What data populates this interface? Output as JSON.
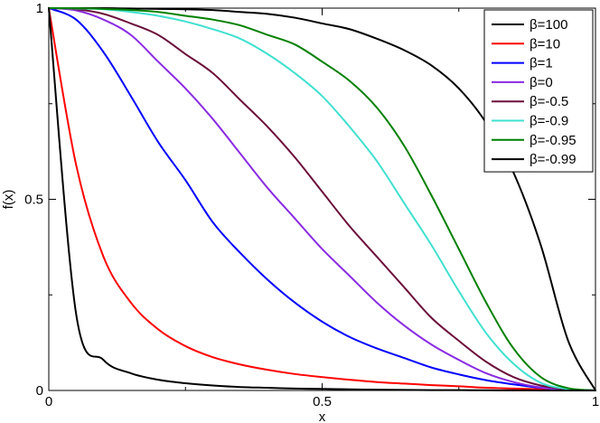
{
  "chart_data": {
    "type": "line",
    "title": "",
    "xlabel": "x",
    "ylabel": "f(x)",
    "xlim": [
      0,
      1
    ],
    "ylim": [
      0,
      1
    ],
    "x_ticks": [
      0,
      0.5,
      1
    ],
    "x_tick_labels": [
      "0",
      "0.5",
      "1"
    ],
    "y_ticks": [
      0,
      0.5,
      1
    ],
    "y_tick_labels": [
      "0",
      "0.5",
      "1"
    ],
    "grid": false,
    "legend_position": "top-right",
    "x": [
      0,
      0.05,
      0.1,
      0.15,
      0.2,
      0.25,
      0.3,
      0.35,
      0.4,
      0.45,
      0.5,
      0.55,
      0.6,
      0.65,
      0.7,
      0.75,
      0.8,
      0.85,
      0.9,
      0.95,
      1
    ],
    "series": [
      {
        "name": "β=100",
        "color": "#000000",
        "values": [
          1,
          1,
          1,
          0.999,
          0.998,
          0.997,
          0.995,
          0.99,
          0.985,
          0.975,
          0.96,
          0.945,
          0.92,
          0.89,
          0.85,
          0.79,
          0.7,
          0.57,
          0.38,
          0.13,
          0
        ]
      },
      {
        "name": "β=10",
        "color": "#ff0000",
        "values": [
          1,
          0.59,
          0.35,
          0.23,
          0.16,
          0.116,
          0.087,
          0.068,
          0.054,
          0.043,
          0.035,
          0.028,
          0.022,
          0.018,
          0.014,
          0.011,
          0.007,
          0.005,
          0.003,
          0.001,
          0
        ]
      },
      {
        "name": "β=1",
        "color": "#0000ff",
        "values": [
          1,
          0.97,
          0.885,
          0.77,
          0.65,
          0.55,
          0.44,
          0.36,
          0.29,
          0.23,
          0.18,
          0.14,
          0.11,
          0.085,
          0.06,
          0.042,
          0.027,
          0.016,
          0.007,
          0.002,
          0
        ]
      },
      {
        "name": "β=0",
        "color": "#8a2be2",
        "values": [
          1,
          0.994,
          0.97,
          0.93,
          0.86,
          0.79,
          0.71,
          0.62,
          0.53,
          0.45,
          0.37,
          0.3,
          0.23,
          0.17,
          0.12,
          0.08,
          0.045,
          0.022,
          0.008,
          0.002,
          0
        ]
      },
      {
        "name": "β=-0.5",
        "color": "#6b0e3a",
        "values": [
          1,
          0.997,
          0.985,
          0.96,
          0.93,
          0.88,
          0.83,
          0.76,
          0.69,
          0.61,
          0.52,
          0.43,
          0.35,
          0.27,
          0.19,
          0.13,
          0.075,
          0.035,
          0.013,
          0.003,
          0
        ]
      },
      {
        "name": "β=-0.9",
        "color": "#40e0d0",
        "values": [
          1,
          0.999,
          0.997,
          0.99,
          0.98,
          0.965,
          0.945,
          0.92,
          0.88,
          0.83,
          0.77,
          0.69,
          0.6,
          0.49,
          0.38,
          0.26,
          0.15,
          0.07,
          0.02,
          0.004,
          0
        ]
      },
      {
        "name": "β=-0.95",
        "color": "#008000",
        "values": [
          1,
          1,
          0.998,
          0.995,
          0.99,
          0.98,
          0.97,
          0.955,
          0.93,
          0.905,
          0.86,
          0.81,
          0.74,
          0.64,
          0.51,
          0.37,
          0.23,
          0.11,
          0.035,
          0.006,
          0
        ]
      },
      {
        "name": "β=-0.99",
        "color": "#000000",
        "values": [
          1,
          0.2,
          0.08,
          0.045,
          0.028,
          0.019,
          0.013,
          0.009,
          0.007,
          0.005,
          0.004,
          0.003,
          0.002,
          0.0015,
          0.001,
          0.0008,
          0.0005,
          0.0003,
          0.0001,
          0,
          0
        ]
      }
    ]
  }
}
